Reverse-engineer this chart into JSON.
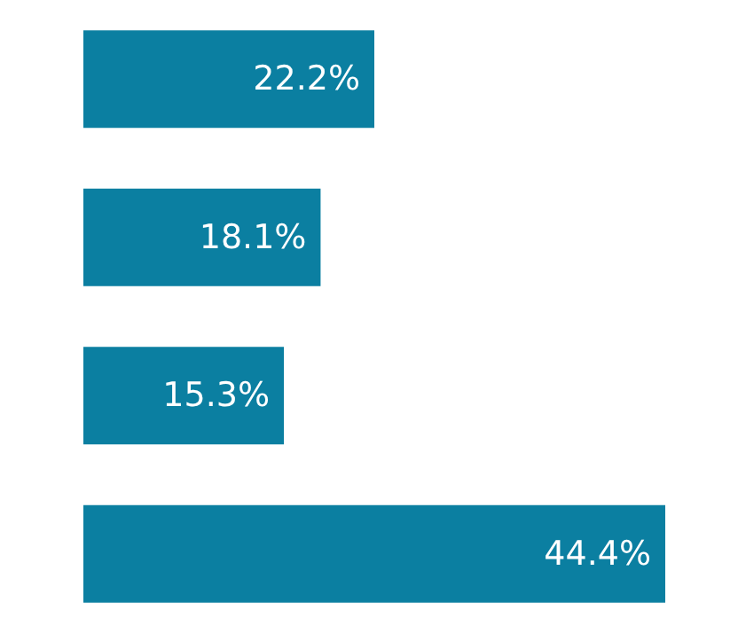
{
  "chart_data": {
    "type": "bar",
    "orientation": "horizontal",
    "categories": [
      null,
      null,
      null,
      null
    ],
    "values": [
      22.2,
      18.1,
      15.3,
      44.4
    ],
    "value_labels": [
      "22.2%",
      "18.1%",
      "15.3%",
      "44.4%"
    ],
    "color": "#0b7fa1"
  }
}
